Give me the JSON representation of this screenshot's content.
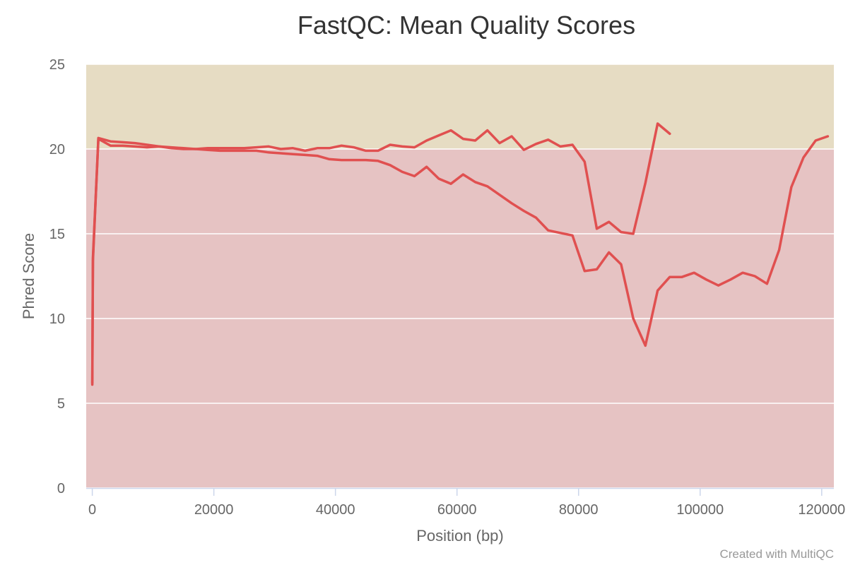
{
  "chart_data": {
    "type": "line",
    "title": "FastQC: Mean Quality Scores",
    "xlabel": "Position (bp)",
    "ylabel": "Phred Score",
    "xlim": [
      -1000,
      122000
    ],
    "ylim": [
      0,
      25
    ],
    "x_ticks": [
      0,
      20000,
      40000,
      60000,
      80000,
      100000,
      120000
    ],
    "y_ticks": [
      0,
      5,
      10,
      15,
      20,
      25
    ],
    "grid": true,
    "legend": "none",
    "bands": [
      {
        "from": 0,
        "to": 20,
        "color": "#e6c3c3"
      },
      {
        "from": 20,
        "to": 25,
        "color": "#e6dcc3"
      }
    ],
    "series": [
      {
        "color": "#e05050",
        "points": [
          [
            0,
            6.1
          ],
          [
            100,
            13.6
          ],
          [
            1000,
            20.6
          ],
          [
            3000,
            20.2
          ],
          [
            5000,
            20.2
          ],
          [
            7000,
            20.15
          ],
          [
            9000,
            20.1
          ],
          [
            11000,
            20.15
          ],
          [
            13000,
            20.05
          ],
          [
            15000,
            20.0
          ],
          [
            17000,
            20.0
          ],
          [
            19000,
            20.05
          ],
          [
            21000,
            20.05
          ],
          [
            23000,
            20.05
          ],
          [
            25000,
            20.05
          ],
          [
            27000,
            20.1
          ],
          [
            29000,
            20.15
          ],
          [
            31000,
            20.0
          ],
          [
            33000,
            20.05
          ],
          [
            35000,
            19.9
          ],
          [
            37000,
            20.05
          ],
          [
            39000,
            20.05
          ],
          [
            41000,
            20.2
          ],
          [
            43000,
            20.1
          ],
          [
            45000,
            19.9
          ],
          [
            47000,
            19.9
          ],
          [
            49000,
            20.25
          ],
          [
            51000,
            20.15
          ],
          [
            53000,
            20.1
          ],
          [
            55000,
            20.5
          ],
          [
            57000,
            20.8
          ],
          [
            59000,
            21.1
          ],
          [
            61000,
            20.6
          ],
          [
            63000,
            20.5
          ],
          [
            65000,
            21.1
          ],
          [
            67000,
            20.35
          ],
          [
            69000,
            20.75
          ],
          [
            71000,
            19.95
          ],
          [
            73000,
            20.3
          ],
          [
            75000,
            20.55
          ],
          [
            77000,
            20.15
          ],
          [
            79000,
            20.25
          ],
          [
            81000,
            19.25
          ],
          [
            83000,
            15.3
          ],
          [
            85000,
            15.7
          ],
          [
            87000,
            15.1
          ],
          [
            89000,
            15.0
          ],
          [
            91000,
            18.0
          ],
          [
            93000,
            21.5
          ],
          [
            95000,
            20.9
          ]
        ]
      },
      {
        "color": "#e05050",
        "points": [
          [
            0,
            6.2
          ],
          [
            100,
            13.4
          ],
          [
            1000,
            20.65
          ],
          [
            3000,
            20.45
          ],
          [
            5000,
            20.4
          ],
          [
            7000,
            20.35
          ],
          [
            9000,
            20.25
          ],
          [
            11000,
            20.15
          ],
          [
            13000,
            20.1
          ],
          [
            15000,
            20.05
          ],
          [
            17000,
            20.0
          ],
          [
            19000,
            19.95
          ],
          [
            21000,
            19.9
          ],
          [
            23000,
            19.9
          ],
          [
            25000,
            19.9
          ],
          [
            27000,
            19.9
          ],
          [
            29000,
            19.8
          ],
          [
            31000,
            19.75
          ],
          [
            33000,
            19.7
          ],
          [
            35000,
            19.65
          ],
          [
            37000,
            19.6
          ],
          [
            39000,
            19.4
          ],
          [
            41000,
            19.35
          ],
          [
            43000,
            19.35
          ],
          [
            45000,
            19.35
          ],
          [
            47000,
            19.3
          ],
          [
            49000,
            19.05
          ],
          [
            51000,
            18.65
          ],
          [
            53000,
            18.4
          ],
          [
            55000,
            18.95
          ],
          [
            57000,
            18.25
          ],
          [
            59000,
            17.95
          ],
          [
            61000,
            18.5
          ],
          [
            63000,
            18.05
          ],
          [
            65000,
            17.8
          ],
          [
            67000,
            17.3
          ],
          [
            69000,
            16.8
          ],
          [
            71000,
            16.35
          ],
          [
            73000,
            15.95
          ],
          [
            75000,
            15.2
          ],
          [
            77000,
            15.05
          ],
          [
            79000,
            14.9
          ],
          [
            81000,
            12.8
          ],
          [
            83000,
            12.9
          ],
          [
            85000,
            13.9
          ],
          [
            87000,
            13.2
          ],
          [
            89000,
            10.0
          ],
          [
            91000,
            8.4
          ],
          [
            93000,
            11.65
          ],
          [
            95000,
            12.45
          ],
          [
            97000,
            12.45
          ],
          [
            99000,
            12.7
          ],
          [
            101000,
            12.3
          ],
          [
            103000,
            11.95
          ],
          [
            105000,
            12.3
          ],
          [
            107000,
            12.7
          ],
          [
            109000,
            12.5
          ],
          [
            111000,
            12.05
          ],
          [
            113000,
            14.05
          ],
          [
            115000,
            17.75
          ],
          [
            117000,
            19.5
          ],
          [
            119000,
            20.5
          ],
          [
            121000,
            20.75
          ]
        ]
      }
    ]
  },
  "footer": {
    "credit": "Created with MultiQC"
  }
}
